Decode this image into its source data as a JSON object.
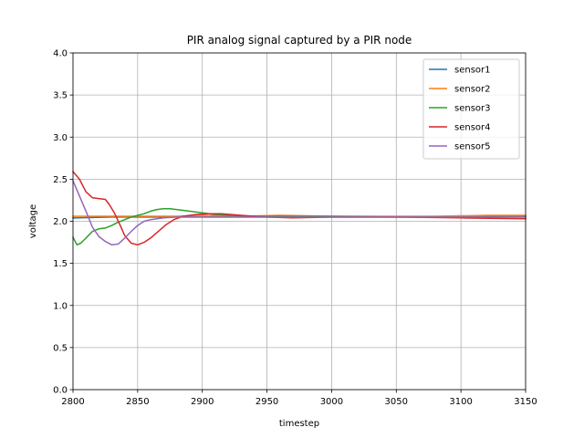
{
  "chart_data": {
    "type": "line",
    "title": "PIR analog signal captured by a PIR node",
    "xlabel": "timestep",
    "ylabel": "voltage",
    "xlim": [
      2800,
      3150
    ],
    "ylim": [
      0.0,
      4.0
    ],
    "xticks": [
      "2800",
      "2850",
      "2900",
      "2950",
      "3000",
      "3050",
      "3100",
      "3150"
    ],
    "yticks": [
      "0.0",
      "0.5",
      "1.0",
      "1.5",
      "2.0",
      "2.5",
      "3.0",
      "3.5",
      "4.0"
    ],
    "grid": true,
    "legend_position": "upper right",
    "series": [
      {
        "name": "sensor1",
        "color": "#1f77b4",
        "points": [
          [
            2800,
            2.04
          ],
          [
            2830,
            2.05
          ],
          [
            2850,
            2.05
          ],
          [
            2880,
            2.05
          ],
          [
            2900,
            2.05
          ],
          [
            2930,
            2.05
          ],
          [
            2960,
            2.05
          ],
          [
            3000,
            2.05
          ],
          [
            3040,
            2.05
          ],
          [
            3080,
            2.05
          ],
          [
            3120,
            2.06
          ],
          [
            3150,
            2.06
          ]
        ]
      },
      {
        "name": "sensor2",
        "color": "#ff7f0e",
        "points": [
          [
            2800,
            2.06
          ],
          [
            2830,
            2.06
          ],
          [
            2850,
            2.06
          ],
          [
            2880,
            2.06
          ],
          [
            2900,
            2.07
          ],
          [
            2930,
            2.06
          ],
          [
            2960,
            2.07
          ],
          [
            3000,
            2.06
          ],
          [
            3040,
            2.06
          ],
          [
            3080,
            2.06
          ],
          [
            3120,
            2.07
          ],
          [
            3150,
            2.07
          ]
        ]
      },
      {
        "name": "sensor3",
        "color": "#2ca02c",
        "points": [
          [
            2800,
            1.81
          ],
          [
            2803,
            1.72
          ],
          [
            2806,
            1.74
          ],
          [
            2810,
            1.8
          ],
          [
            2815,
            1.88
          ],
          [
            2820,
            1.91
          ],
          [
            2825,
            1.92
          ],
          [
            2830,
            1.95
          ],
          [
            2835,
            1.99
          ],
          [
            2840,
            2.02
          ],
          [
            2845,
            2.05
          ],
          [
            2850,
            2.07
          ],
          [
            2855,
            2.09
          ],
          [
            2860,
            2.12
          ],
          [
            2865,
            2.14
          ],
          [
            2870,
            2.15
          ],
          [
            2875,
            2.15
          ],
          [
            2880,
            2.14
          ],
          [
            2890,
            2.12
          ],
          [
            2900,
            2.1
          ],
          [
            2910,
            2.08
          ],
          [
            2920,
            2.07
          ],
          [
            2935,
            2.06
          ],
          [
            2950,
            2.06
          ],
          [
            3000,
            2.06
          ],
          [
            3050,
            2.05
          ],
          [
            3100,
            2.05
          ],
          [
            3150,
            2.05
          ]
        ]
      },
      {
        "name": "sensor4",
        "color": "#d62728",
        "points": [
          [
            2800,
            2.59
          ],
          [
            2805,
            2.5
          ],
          [
            2810,
            2.35
          ],
          [
            2815,
            2.28
          ],
          [
            2820,
            2.27
          ],
          [
            2825,
            2.26
          ],
          [
            2828,
            2.2
          ],
          [
            2832,
            2.1
          ],
          [
            2836,
            1.97
          ],
          [
            2840,
            1.83
          ],
          [
            2845,
            1.74
          ],
          [
            2850,
            1.72
          ],
          [
            2855,
            1.75
          ],
          [
            2860,
            1.8
          ],
          [
            2866,
            1.88
          ],
          [
            2872,
            1.96
          ],
          [
            2878,
            2.02
          ],
          [
            2885,
            2.06
          ],
          [
            2895,
            2.08
          ],
          [
            2905,
            2.09
          ],
          [
            2915,
            2.09
          ],
          [
            2930,
            2.07
          ],
          [
            2950,
            2.05
          ],
          [
            2970,
            2.04
          ],
          [
            3000,
            2.05
          ],
          [
            3050,
            2.05
          ],
          [
            3100,
            2.04
          ],
          [
            3150,
            2.03
          ]
        ]
      },
      {
        "name": "sensor5",
        "color": "#9467bd",
        "points": [
          [
            2800,
            2.48
          ],
          [
            2805,
            2.3
          ],
          [
            2810,
            2.12
          ],
          [
            2815,
            1.93
          ],
          [
            2820,
            1.82
          ],
          [
            2825,
            1.76
          ],
          [
            2830,
            1.72
          ],
          [
            2835,
            1.73
          ],
          [
            2840,
            1.8
          ],
          [
            2845,
            1.88
          ],
          [
            2850,
            1.95
          ],
          [
            2855,
            2.0
          ],
          [
            2860,
            2.02
          ],
          [
            2870,
            2.04
          ],
          [
            2880,
            2.05
          ],
          [
            2900,
            2.05
          ],
          [
            2930,
            2.05
          ],
          [
            2950,
            2.05
          ],
          [
            3000,
            2.05
          ],
          [
            3050,
            2.05
          ],
          [
            3100,
            2.05
          ],
          [
            3150,
            2.05
          ]
        ]
      }
    ]
  }
}
